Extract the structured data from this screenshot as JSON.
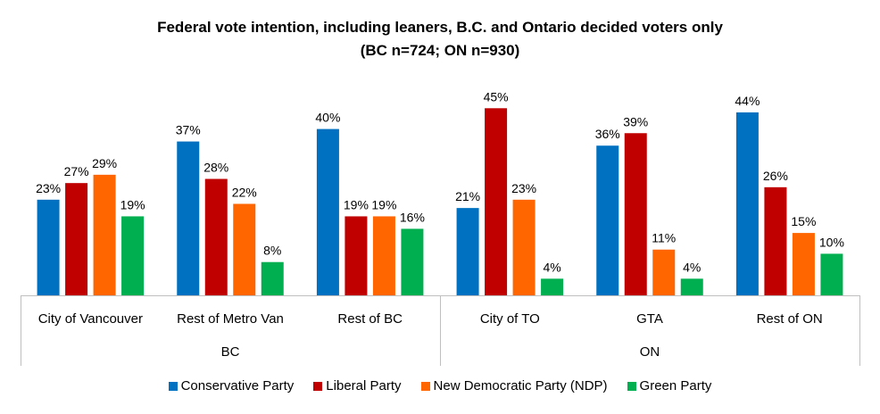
{
  "chart_data": {
    "type": "bar",
    "title": "Federal vote intention, including leaners, B.C. and Ontario decided voters only",
    "subtitle": "(BC n=724; ON n=930)",
    "categories": [
      "City of Vancouver",
      "Rest of Metro Van",
      "Rest of BC",
      "City of TO",
      "GTA",
      "Rest of ON"
    ],
    "category_groups": [
      {
        "label": "BC",
        "categories": [
          "City of Vancouver",
          "Rest of Metro Van",
          "Rest of BC"
        ]
      },
      {
        "label": "ON",
        "categories": [
          "City of TO",
          "GTA",
          "Rest of ON"
        ]
      }
    ],
    "series": [
      {
        "name": "Conservative Party",
        "color": "#0070C0",
        "values": [
          23,
          37,
          40,
          21,
          36,
          44
        ]
      },
      {
        "name": "Liberal Party",
        "color": "#C00000",
        "values": [
          27,
          28,
          19,
          45,
          39,
          26
        ]
      },
      {
        "name": "New Democratic Party (NDP)",
        "color": "#FF6600",
        "values": [
          29,
          22,
          19,
          23,
          11,
          15
        ]
      },
      {
        "name": "Green Party",
        "color": "#00B050",
        "values": [
          19,
          8,
          16,
          4,
          4,
          10
        ]
      }
    ],
    "value_suffix": "%",
    "xlabel": "",
    "ylabel": "",
    "ylim": [
      0,
      50
    ],
    "grid": false,
    "legend_position": "bottom",
    "data_labels": true
  }
}
